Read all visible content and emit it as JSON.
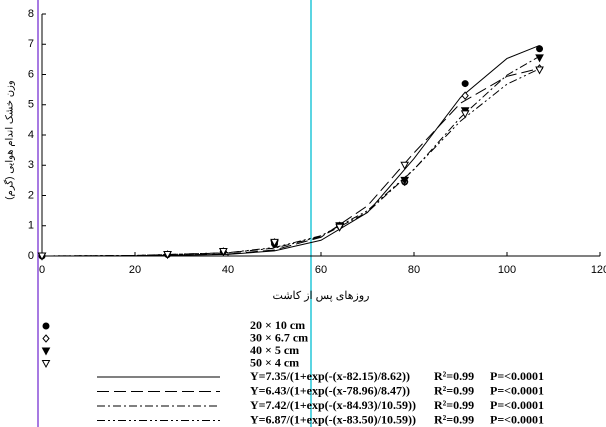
{
  "chart_data": {
    "type": "scatter",
    "x_label": "روزهای پس از کاشت",
    "y_label": "وزن خشک اندام هوایی (گرم)",
    "xlim": [
      0,
      120
    ],
    "xticks": [
      0,
      20,
      40,
      60,
      80,
      100,
      120
    ],
    "ylim": [
      0,
      8
    ],
    "yticks": [
      0,
      1,
      2,
      3,
      4,
      5,
      6,
      7,
      8
    ],
    "series": [
      {
        "name": "20 × 10 cm",
        "marker": "filled-circle",
        "color": "#000000",
        "x": [
          0,
          27,
          39,
          50,
          64,
          78,
          91,
          107
        ],
        "values": [
          0,
          0.05,
          0.15,
          0.4,
          1.0,
          2.45,
          5.7,
          6.85
        ]
      },
      {
        "name": "30 × 6.7 cm",
        "marker": "open-diamond",
        "color": "#000000",
        "x": [
          0,
          27,
          39,
          50,
          64,
          78,
          91,
          107
        ],
        "values": [
          0,
          0.05,
          0.15,
          0.45,
          1.0,
          2.45,
          5.3,
          6.2
        ]
      },
      {
        "name": "40 × 5 cm",
        "marker": "filled-triangle-down",
        "color": "#000000",
        "x": [
          0,
          27,
          39,
          50,
          64,
          78,
          91,
          107
        ],
        "values": [
          0,
          0.05,
          0.15,
          0.4,
          1.0,
          2.5,
          4.8,
          6.55
        ]
      },
      {
        "name": "50 × 4 cm",
        "marker": "open-triangle-down",
        "color": "#000000",
        "x": [
          0,
          27,
          39,
          50,
          64,
          78,
          91,
          107
        ],
        "values": [
          0,
          0.05,
          0.15,
          0.45,
          0.95,
          3.0,
          4.7,
          6.15
        ]
      }
    ],
    "fits": [
      {
        "equation": "Y=7.35/(1+exp(-(x-82.15)/8.62))",
        "r2": "R²=0.99",
        "p": "P=<0.0001",
        "dash": "none",
        "x": [
          0,
          20,
          40,
          50,
          60,
          70,
          80,
          90,
          100,
          107
        ],
        "values": [
          0,
          0.005,
          0.055,
          0.17,
          0.52,
          1.44,
          3.22,
          5.24,
          6.53,
          6.96
        ]
      },
      {
        "equation": "Y=6.43/(1+exp(-(x-78.96)/8.47))",
        "r2": "R²=0.99",
        "p": "P=<0.0001",
        "dash": "12 5",
        "x": [
          0,
          20,
          40,
          50,
          60,
          70,
          80,
          90,
          100,
          107
        ],
        "values": [
          0,
          0.006,
          0.064,
          0.2,
          0.62,
          1.66,
          3.41,
          5.05,
          5.94,
          6.2
        ]
      },
      {
        "equation": "Y=7.42/(1+exp(-(x-84.93)/10.59))",
        "r2": "R²=0.99",
        "p": "P=<0.0001",
        "dash": "8 3 2 3",
        "x": [
          0,
          20,
          40,
          50,
          60,
          70,
          80,
          90,
          100,
          107
        ],
        "values": [
          0,
          0.017,
          0.105,
          0.26,
          0.645,
          1.45,
          2.86,
          4.58,
          5.98,
          6.6
        ]
      },
      {
        "equation": "Y=6.87/(1+exp(-(x-83.50)/10.59))",
        "r2": "R²=0.99",
        "p": "P=<0.0001",
        "dash": "8 3 2 3 2 3",
        "x": [
          0,
          20,
          40,
          50,
          60,
          70,
          80,
          90,
          100,
          107
        ],
        "values": [
          0,
          0.017,
          0.111,
          0.28,
          0.67,
          1.5,
          2.87,
          4.46,
          5.68,
          6.19
        ]
      }
    ]
  }
}
